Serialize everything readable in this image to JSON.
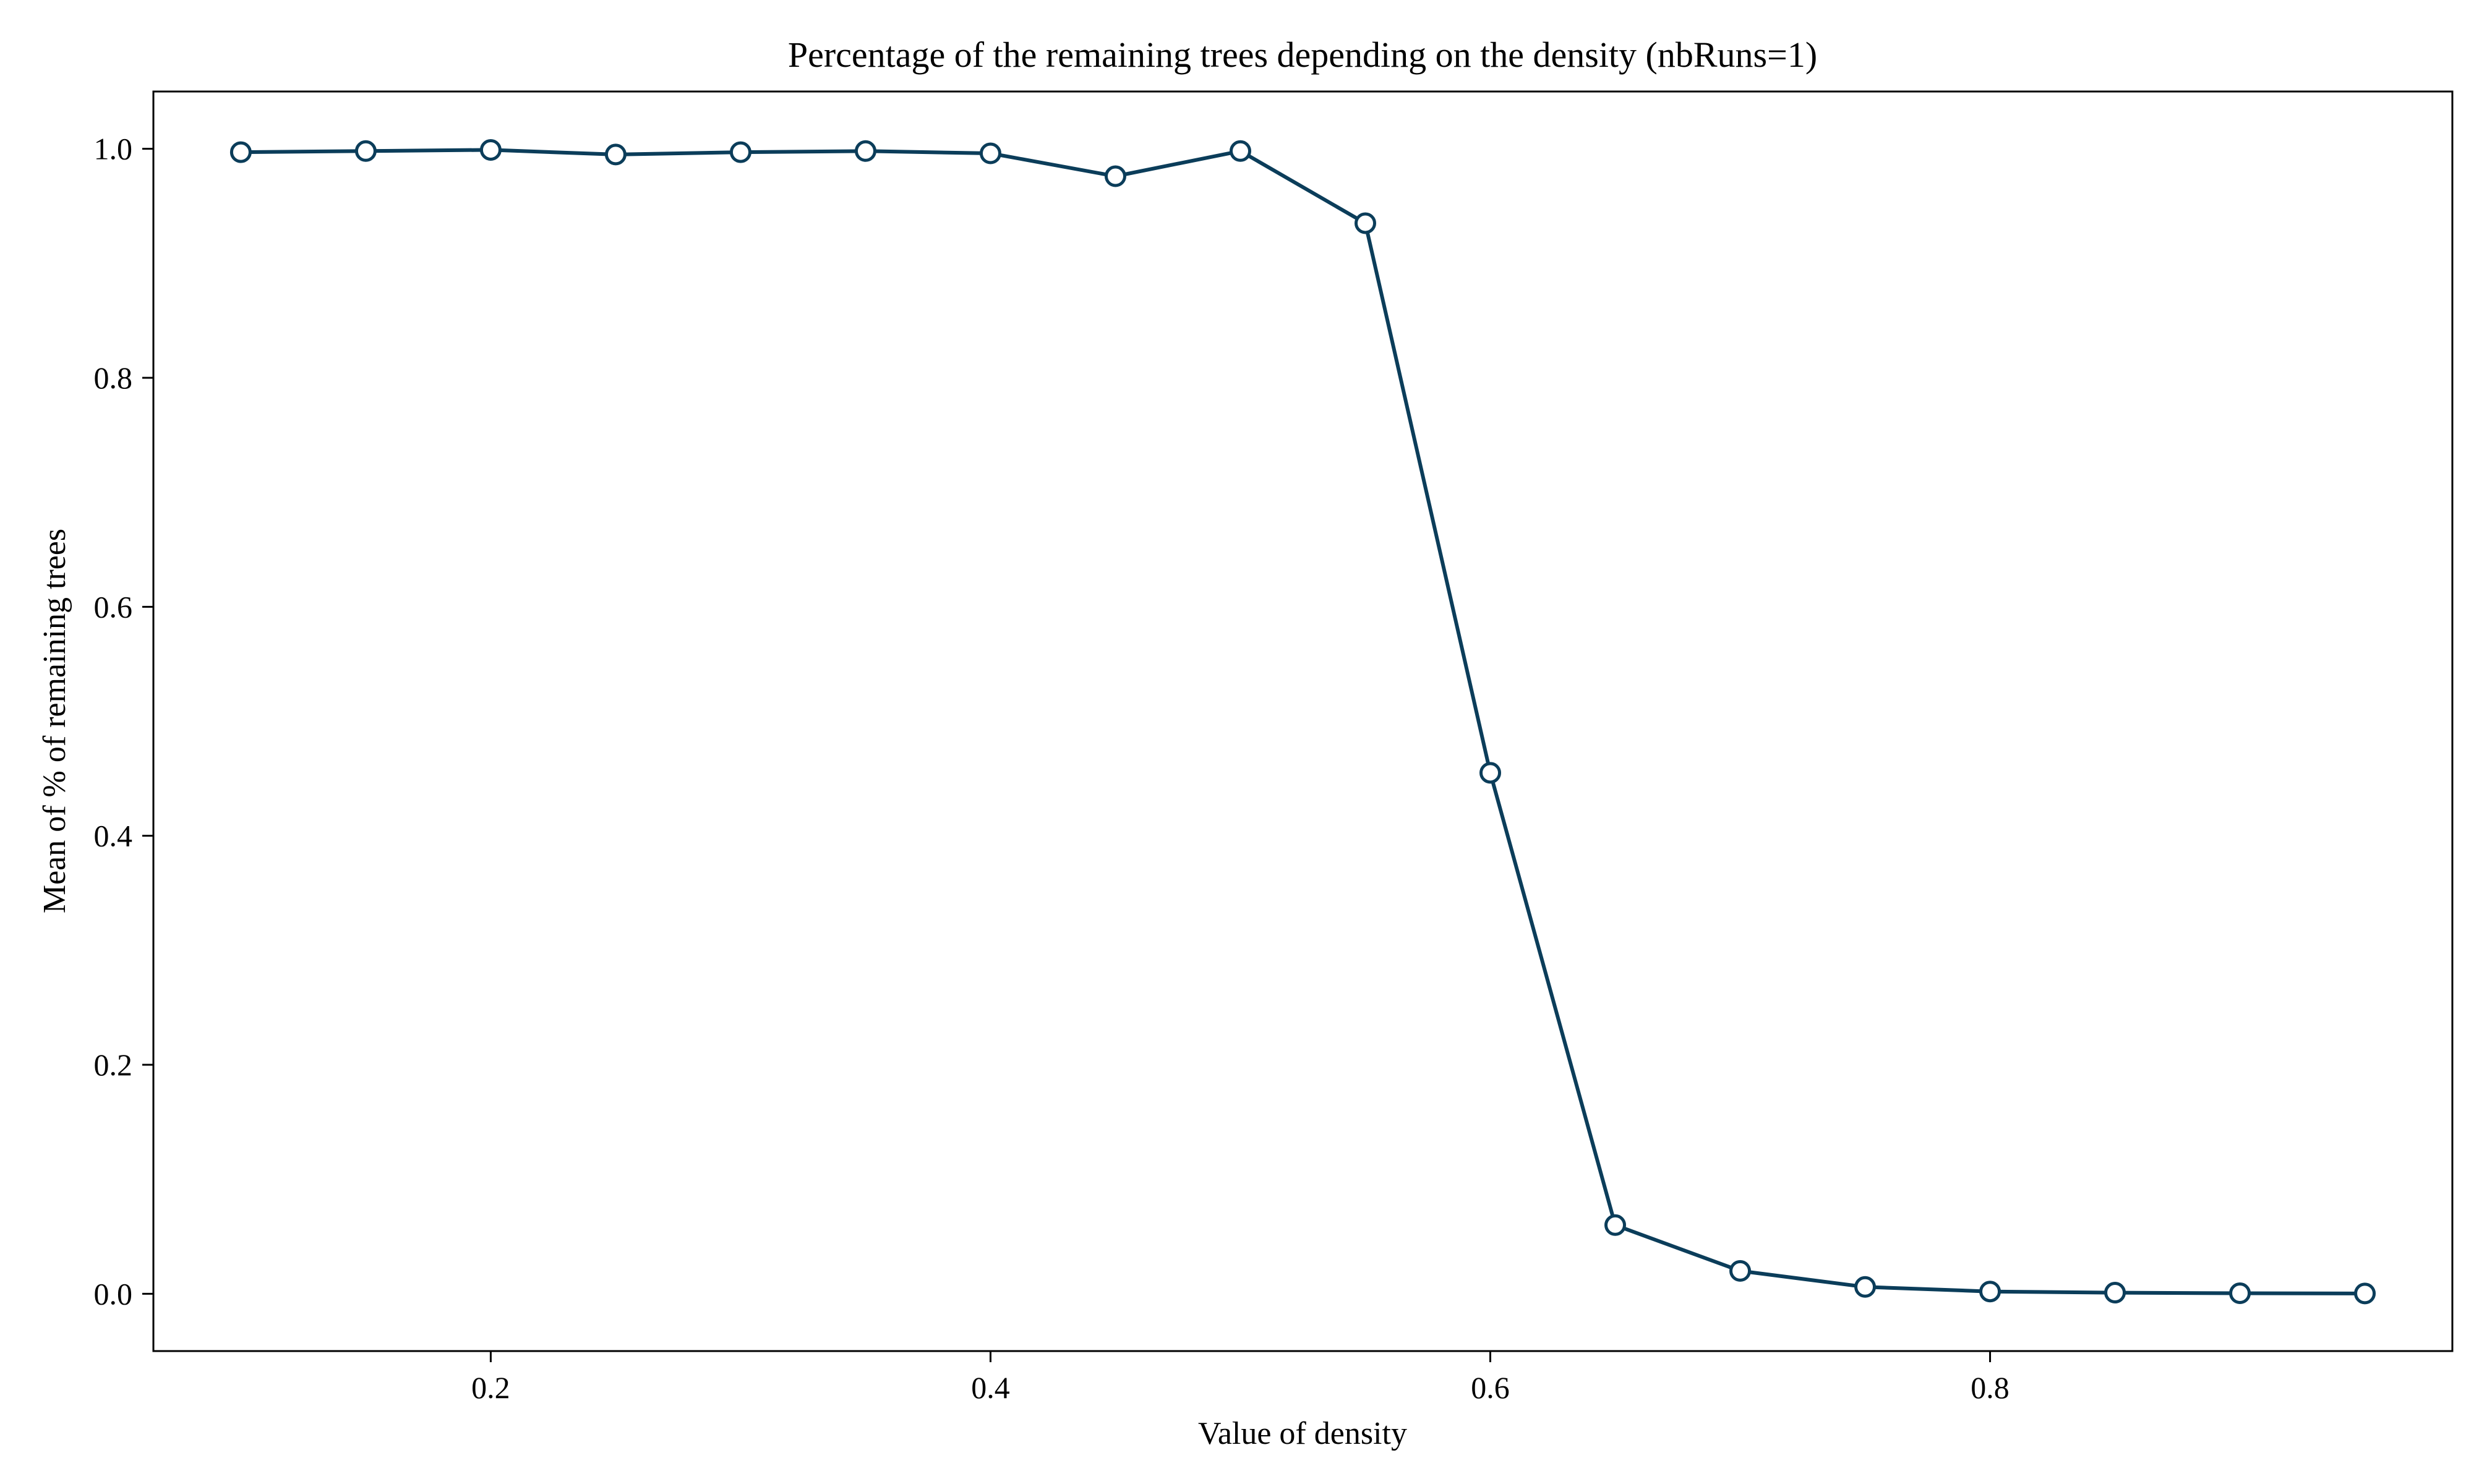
{
  "chart_data": {
    "type": "line",
    "title": "Percentage of the remaining trees depending on the density (nbRuns=1)",
    "xlabel": "Value of density",
    "ylabel": "Mean of % of remaining trees",
    "xlim": [
      0.065,
      0.985
    ],
    "ylim": [
      -0.05,
      1.05
    ],
    "xticks": [
      0.2,
      0.4,
      0.6,
      0.8
    ],
    "xtick_labels": [
      "0.2",
      "0.4",
      "0.6",
      "0.8"
    ],
    "yticks": [
      0.0,
      0.2,
      0.4,
      0.6,
      0.8,
      1.0
    ],
    "ytick_labels": [
      "0.0",
      "0.2",
      "0.4",
      "0.6",
      "0.8",
      "1.0"
    ],
    "grid": false,
    "legend": "none",
    "line_color": "#0b3d5a",
    "marker": "open-circle",
    "series": [
      {
        "x": [
          0.1,
          0.15,
          0.2,
          0.25,
          0.3,
          0.35,
          0.4,
          0.45,
          0.5,
          0.55,
          0.6,
          0.65,
          0.7,
          0.75,
          0.8,
          0.85,
          0.9,
          0.95
        ],
        "values": [
          0.997,
          0.998,
          0.999,
          0.995,
          0.997,
          0.998,
          0.996,
          0.976,
          0.998,
          0.935,
          0.455,
          0.06,
          0.02,
          0.006,
          0.002,
          0.001,
          0.0005,
          0.0003
        ]
      }
    ]
  }
}
